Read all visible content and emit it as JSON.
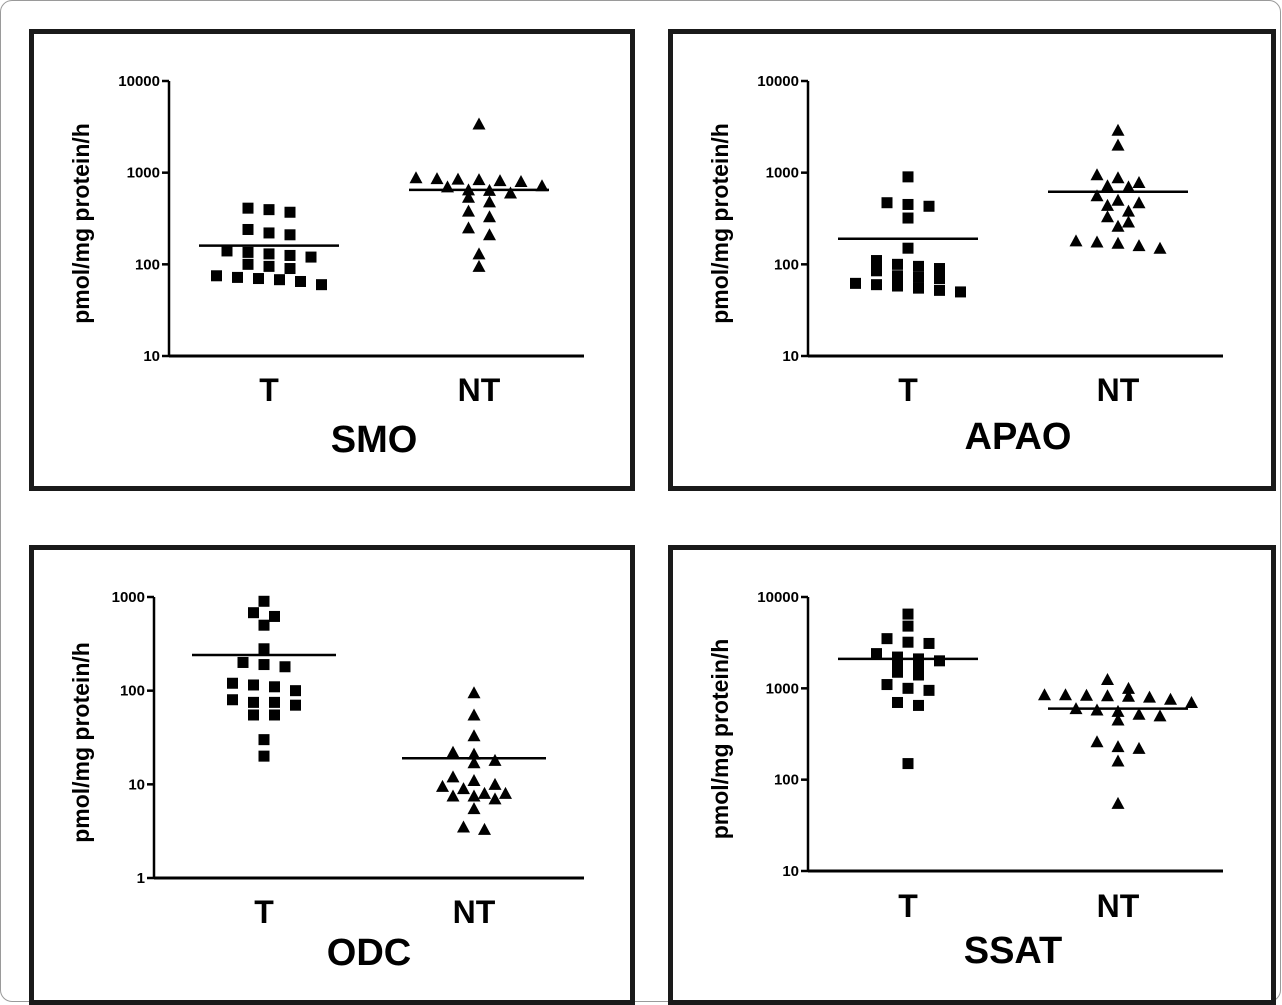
{
  "chart_data": [
    {
      "type": "scatter",
      "title": "SMO",
      "ylabel": "pmol/mg protein/h",
      "yscale": "log",
      "ylim": [
        10,
        10000
      ],
      "yticks": [
        "10",
        "100",
        "1000",
        "10000"
      ],
      "categories": [
        "T",
        "NT"
      ],
      "series": [
        {
          "category": "T",
          "marker": "square",
          "mean": 160,
          "values": [
            410,
            395,
            370,
            240,
            220,
            210,
            140,
            135,
            130,
            125,
            120,
            100,
            95,
            90,
            75,
            72,
            70,
            68,
            65,
            60
          ]
        },
        {
          "category": "NT",
          "marker": "triangle",
          "mean": 650,
          "values": [
            3400,
            880,
            860,
            850,
            840,
            820,
            800,
            720,
            700,
            650,
            640,
            600,
            540,
            480,
            380,
            330,
            250,
            210,
            130,
            95
          ]
        }
      ]
    },
    {
      "type": "scatter",
      "title": "APAO",
      "ylabel": "pmol/mg protein/h",
      "yscale": "log",
      "ylim": [
        10,
        10000
      ],
      "yticks": [
        "10",
        "100",
        "1000",
        "10000"
      ],
      "categories": [
        "T",
        "NT"
      ],
      "series": [
        {
          "category": "T",
          "marker": "square",
          "mean": 190,
          "values": [
            900,
            470,
            450,
            430,
            320,
            150,
            110,
            100,
            95,
            90,
            85,
            75,
            72,
            70,
            62,
            60,
            58,
            55,
            52,
            50
          ]
        },
        {
          "category": "NT",
          "marker": "triangle",
          "mean": 620,
          "values": [
            2900,
            2000,
            950,
            880,
            780,
            720,
            700,
            560,
            500,
            470,
            440,
            380,
            330,
            290,
            260,
            180,
            175,
            170,
            160,
            150
          ]
        }
      ]
    },
    {
      "type": "scatter",
      "title": "ODC",
      "ylabel": "pmol/mg protein/h",
      "yscale": "log",
      "ylim": [
        1,
        1000
      ],
      "yticks": [
        "1",
        "10",
        "100",
        "1000"
      ],
      "categories": [
        "T",
        "NT"
      ],
      "series": [
        {
          "category": "T",
          "marker": "square",
          "mean": 240,
          "values": [
            900,
            680,
            620,
            500,
            280,
            200,
            190,
            180,
            120,
            115,
            110,
            100,
            80,
            75,
            75,
            70,
            55,
            55,
            30,
            20
          ]
        },
        {
          "category": "NT",
          "marker": "triangle",
          "mean": 19,
          "values": [
            95,
            55,
            33,
            22,
            21,
            18,
            17,
            12,
            11,
            10,
            9.5,
            9,
            8,
            8,
            7.5,
            7.5,
            7,
            5.5,
            3.5,
            3.3
          ]
        }
      ]
    },
    {
      "type": "scatter",
      "title": "SSAT",
      "ylabel": "pmol/mg protein/h",
      "yscale": "log",
      "ylim": [
        10,
        10000
      ],
      "yticks": [
        "10",
        "100",
        "1000",
        "10000"
      ],
      "categories": [
        "T",
        "NT"
      ],
      "series": [
        {
          "category": "T",
          "marker": "square",
          "mean": 2100,
          "values": [
            6500,
            4800,
            3500,
            3200,
            3100,
            2400,
            2200,
            2100,
            2000,
            1900,
            1800,
            1500,
            1400,
            1100,
            1000,
            950,
            700,
            650,
            150
          ]
        },
        {
          "category": "NT",
          "marker": "triangle",
          "mean": 600,
          "values": [
            1250,
            1000,
            850,
            850,
            840,
            830,
            820,
            800,
            760,
            700,
            600,
            580,
            560,
            520,
            500,
            450,
            260,
            230,
            220,
            160,
            55
          ]
        }
      ]
    }
  ]
}
